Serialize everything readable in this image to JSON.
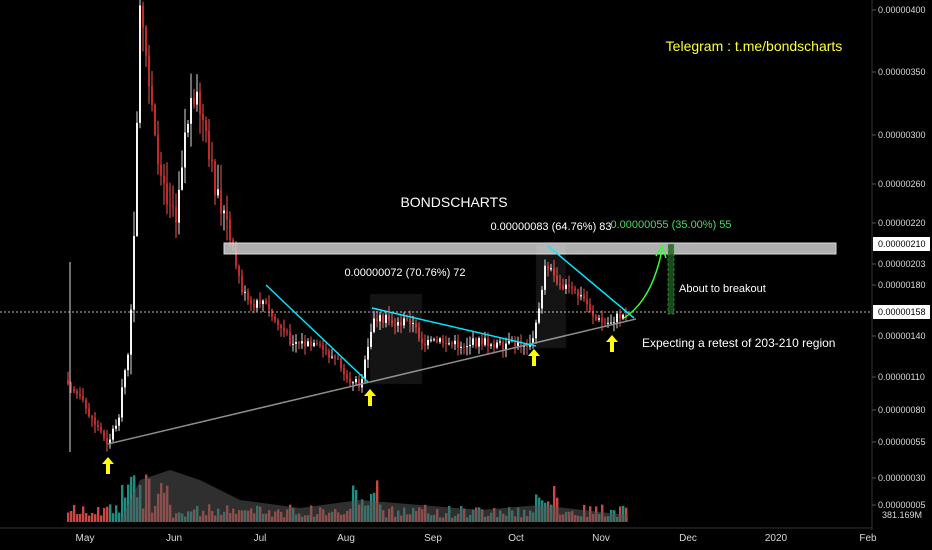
{
  "chart_data": {
    "type": "candlestick",
    "title": "",
    "watermark": "BONDSCHARTS",
    "telegram": "Telegram : t.me/bondscharts",
    "y_axis": {
      "scale": "log",
      "ticks": [
        "0.00000400",
        "0.00000350",
        "0.00000300",
        "0.00000260",
        "0.00000220",
        "0.00000203",
        "0.00000180",
        "0.00000140",
        "0.00000110",
        "0.00000080",
        "0.00000055",
        "0.00000030",
        "0.00000005"
      ],
      "highlighted": [
        "0.00000210",
        "0.00000158"
      ]
    },
    "x_axis": {
      "ticks": [
        "May",
        "Jun",
        "Jul",
        "Aug",
        "Sep",
        "Oct",
        "Nov",
        "Dec",
        "2020",
        "Feb"
      ]
    },
    "volume_label": "381.169M",
    "resistance_zone": {
      "low": 2.03e-06,
      "high": 2.1e-06
    },
    "current_price": 1.58e-06,
    "annotations": {
      "measure1": "0.00000072 (70.76%) 72",
      "measure2": "0.00000083 (64.76%) 83",
      "measure3": "0.00000055 (35.00%) 55",
      "breakout": "About to breakout",
      "retest": "Expecting a retest of 203-210 region"
    },
    "colors": {
      "up": "#26a69a",
      "down": "#ef5350",
      "body_down": "#c62828",
      "trendline": "#00e5ff",
      "support": "#8c8c8c",
      "arrow": "#ffff00",
      "projection": "#33ff33"
    }
  }
}
